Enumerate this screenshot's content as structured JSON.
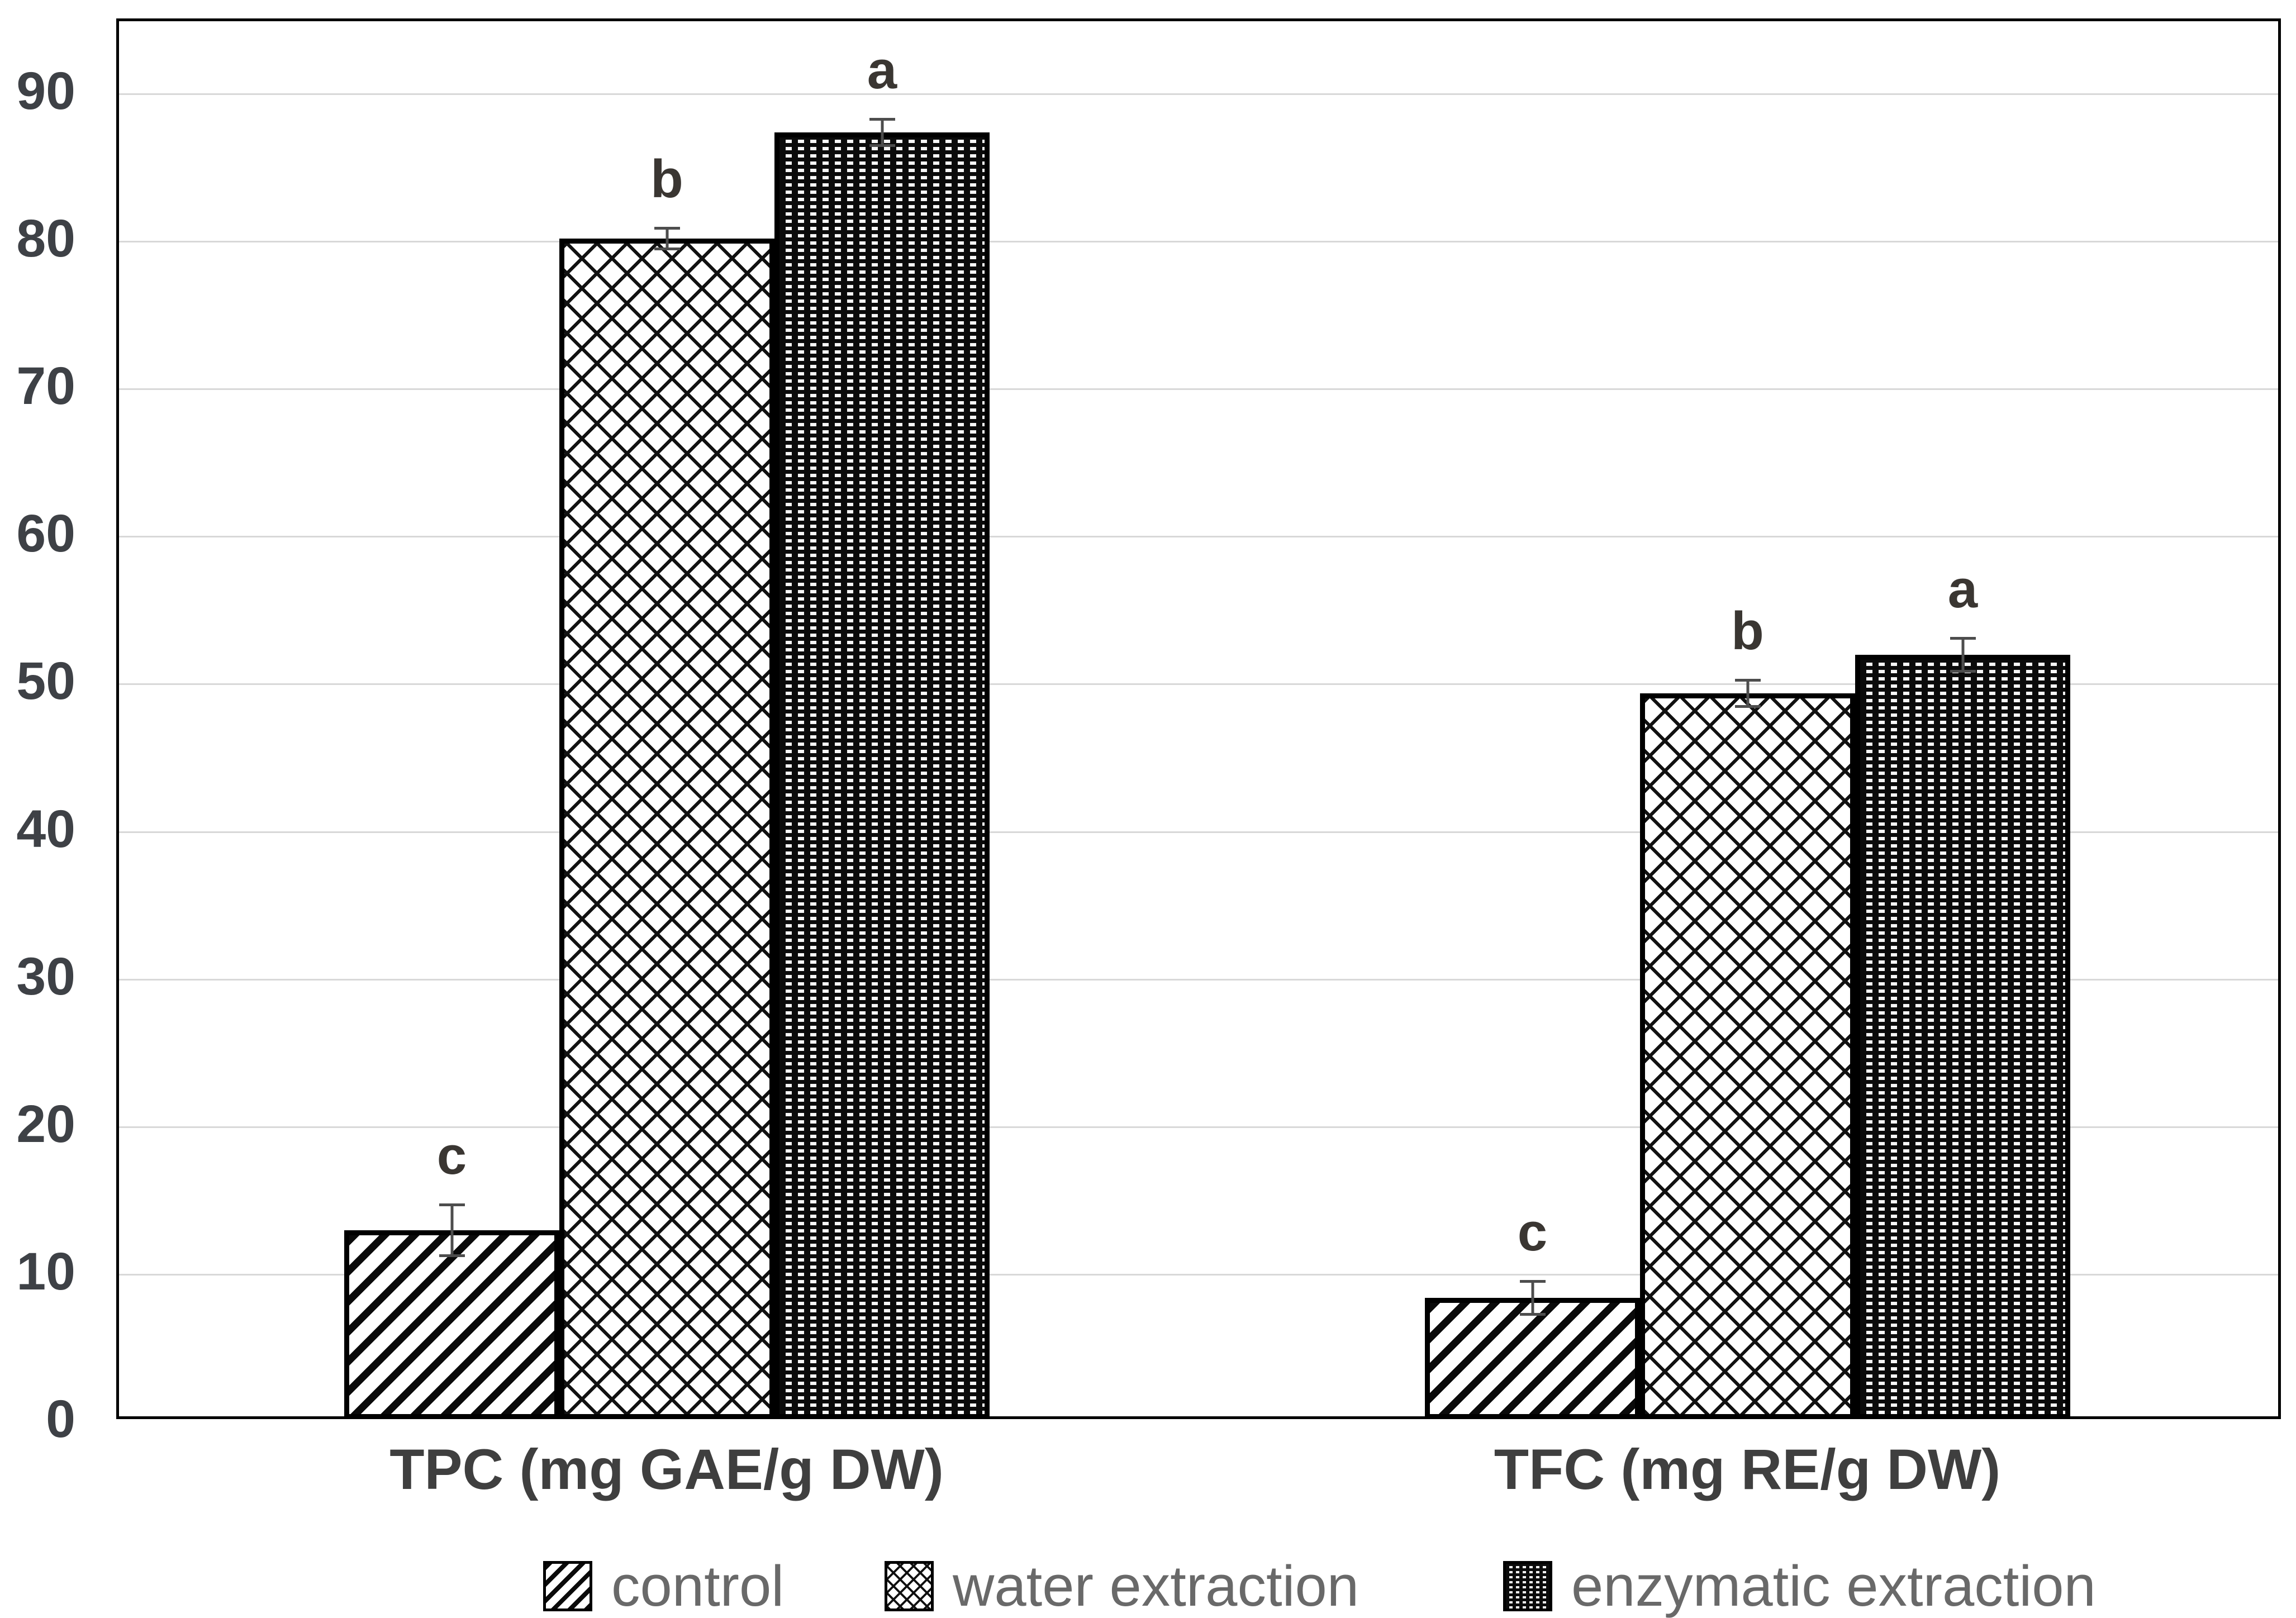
{
  "chart_data": {
    "type": "bar",
    "title": "",
    "xlabel": "",
    "ylabel": "",
    "categories": [
      "TPC (mg GAE/g DW)",
      "TFC (mg RE/g DW)"
    ],
    "series": [
      {
        "name": "control",
        "pattern": "diagonal-stripe",
        "values": [
          12.8,
          8.2
        ],
        "errors": [
          1.8,
          1.2
        ],
        "sig_letters": [
          "c",
          "c"
        ]
      },
      {
        "name": "water extraction",
        "pattern": "diamond-hatch",
        "values": [
          80.0,
          49.2
        ],
        "errors": [
          0.8,
          1.0
        ],
        "sig_letters": [
          "b",
          "b"
        ]
      },
      {
        "name": "enzymatic extraction",
        "pattern": "dot-grid-black",
        "values": [
          87.2,
          51.8
        ],
        "errors": [
          1.0,
          1.2
        ],
        "sig_letters": [
          "a",
          "a"
        ]
      }
    ],
    "yticks": [
      0,
      10,
      20,
      30,
      40,
      50,
      60,
      70,
      80,
      90
    ],
    "ylim": [
      0,
      95
    ],
    "grid": "horizontal",
    "legend_position": "bottom"
  },
  "colors": {
    "background": "#ffffff",
    "gridline": "#d8d8d8",
    "plot_border": "#000000",
    "tick_label": "#3e4146",
    "category_label": "#3f3f3f",
    "legend_text": "#696969",
    "error_bar": "#4d4d4d",
    "sig_letter": "#3a3632"
  }
}
